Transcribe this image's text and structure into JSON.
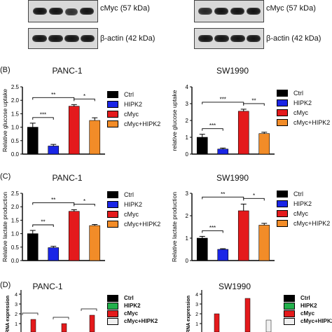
{
  "blots": [
    {
      "left_label": "cMyc (57 kDa)",
      "right_label": "β-actin (42 kDa)"
    },
    {
      "left_label": "cMyc (57 kDa)",
      "right_label": "β-actin (42 kDa)"
    }
  ],
  "panels": {
    "b": "(B)",
    "c": "(C)",
    "d": "(D)"
  },
  "colors": {
    "ctrl": "#000000",
    "hipk2": "#1a25e6",
    "cmyc": "#e41a1c",
    "cmyc_hipk2": "#f28c28",
    "hipk2_green": "#22b14c",
    "cmyc_hipk2_light": "#f0f0f0"
  },
  "legend": [
    "Ctrl",
    "HIPK2",
    "cMyc",
    "cMyc+HIPK2"
  ],
  "chart_data": [
    {
      "type": "bar",
      "title": "PANC-1",
      "ylabel": "Relative glucose uptake",
      "ylim": [
        0,
        2.5
      ],
      "yticks": [
        "0.0",
        "0.5",
        "1.0",
        "1.5",
        "2.0",
        "2.5"
      ],
      "categories": [
        "Ctrl",
        "HIPK2",
        "cMyc",
        "cMyc+HIPK2"
      ],
      "values": [
        1.0,
        0.3,
        1.78,
        1.25
      ],
      "errors": [
        0.15,
        0.06,
        0.06,
        0.1
      ],
      "significance": [
        "***",
        "**",
        "*"
      ]
    },
    {
      "type": "bar",
      "title": "SW1990",
      "ylabel": "relative glucose uptake",
      "ylim": [
        0,
        4
      ],
      "yticks": [
        "0",
        "1",
        "2",
        "3",
        "4"
      ],
      "categories": [
        "Ctrl",
        "HIPK2",
        "cMyc",
        "cMyc+HIPK2"
      ],
      "values": [
        1.0,
        0.3,
        2.55,
        1.22
      ],
      "errors": [
        0.18,
        0.06,
        0.12,
        0.08
      ],
      "significance": [
        "***",
        "***",
        "**"
      ]
    },
    {
      "type": "bar",
      "title": "PANC-1",
      "ylabel": "Relative lactate production",
      "ylim": [
        0,
        2.5
      ],
      "yticks": [
        "0.0",
        "0.5",
        "1.0",
        "1.5",
        "2.0",
        "2.5"
      ],
      "categories": [
        "Ctrl",
        "HIPK2",
        "cMyc",
        "cMyc+HIPK2"
      ],
      "values": [
        1.0,
        0.48,
        1.83,
        1.3
      ],
      "errors": [
        0.12,
        0.05,
        0.06,
        0.04
      ],
      "significance": [
        "**",
        "**",
        "*"
      ]
    },
    {
      "type": "bar",
      "title": "SW1990",
      "ylabel": "Relative lactate production",
      "ylim": [
        0,
        3
      ],
      "yticks": [
        "0",
        "1",
        "2",
        "3"
      ],
      "categories": [
        "Ctrl",
        "HIPK2",
        "cMyc",
        "cMyc+HIPK2"
      ],
      "values": [
        1.0,
        0.5,
        2.22,
        1.58
      ],
      "errors": [
        0.08,
        0.03,
        0.3,
        0.08
      ],
      "significance": [
        "***",
        "**",
        "*"
      ]
    }
  ],
  "panel_d": {
    "left_title": "PANC-1",
    "right_title": "SW1990",
    "ylabel": "mRNA expression",
    "yticks": [
      "4",
      "3",
      "2",
      "1"
    ],
    "legend": [
      "Ctrl",
      "HIPK2",
      "cMyc",
      "cMyc+HIPK2"
    ]
  }
}
